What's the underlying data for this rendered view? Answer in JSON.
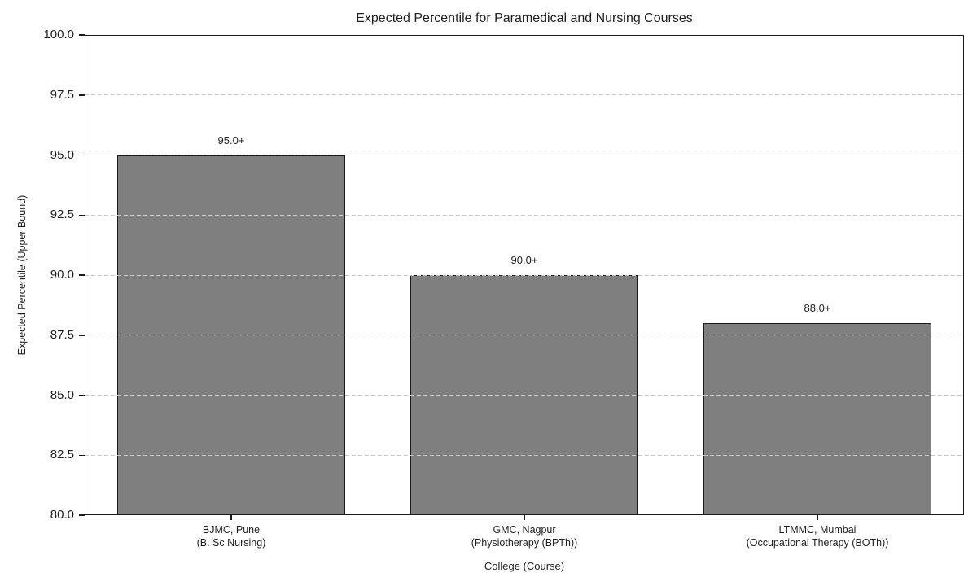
{
  "chart_data": {
    "type": "bar",
    "title": "Expected Percentile for Paramedical and Nursing Courses",
    "xlabel": "College (Course)",
    "ylabel": "Expected Percentile (Upper Bound)",
    "categories": [
      "BJMC, Pune\n(B. Sc Nursing)",
      "GMC, Nagpur\n(Physiotherapy (BPTh))",
      "LTMMC, Mumbai\n(Occupational Therapy (BOTh))"
    ],
    "values": [
      95.0,
      90.0,
      88.0
    ],
    "bar_value_labels": [
      "95.0+",
      "90.0+",
      "88.0+"
    ],
    "ylim": [
      80.0,
      100.0
    ],
    "ytick_labels": [
      "80.0",
      "82.5",
      "85.0",
      "87.5",
      "90.0",
      "92.5",
      "95.0",
      "97.5",
      "100.0"
    ],
    "grid": "horizontal-dashed",
    "legend": "none",
    "colors": {
      "bar_fill": "#7f7f7f",
      "bar_edge": "#1a1a1a",
      "gridline": "#c9c9c9",
      "spine": "#1a1a1a",
      "text": "#1f1f1f",
      "background": "#ffffff"
    }
  }
}
